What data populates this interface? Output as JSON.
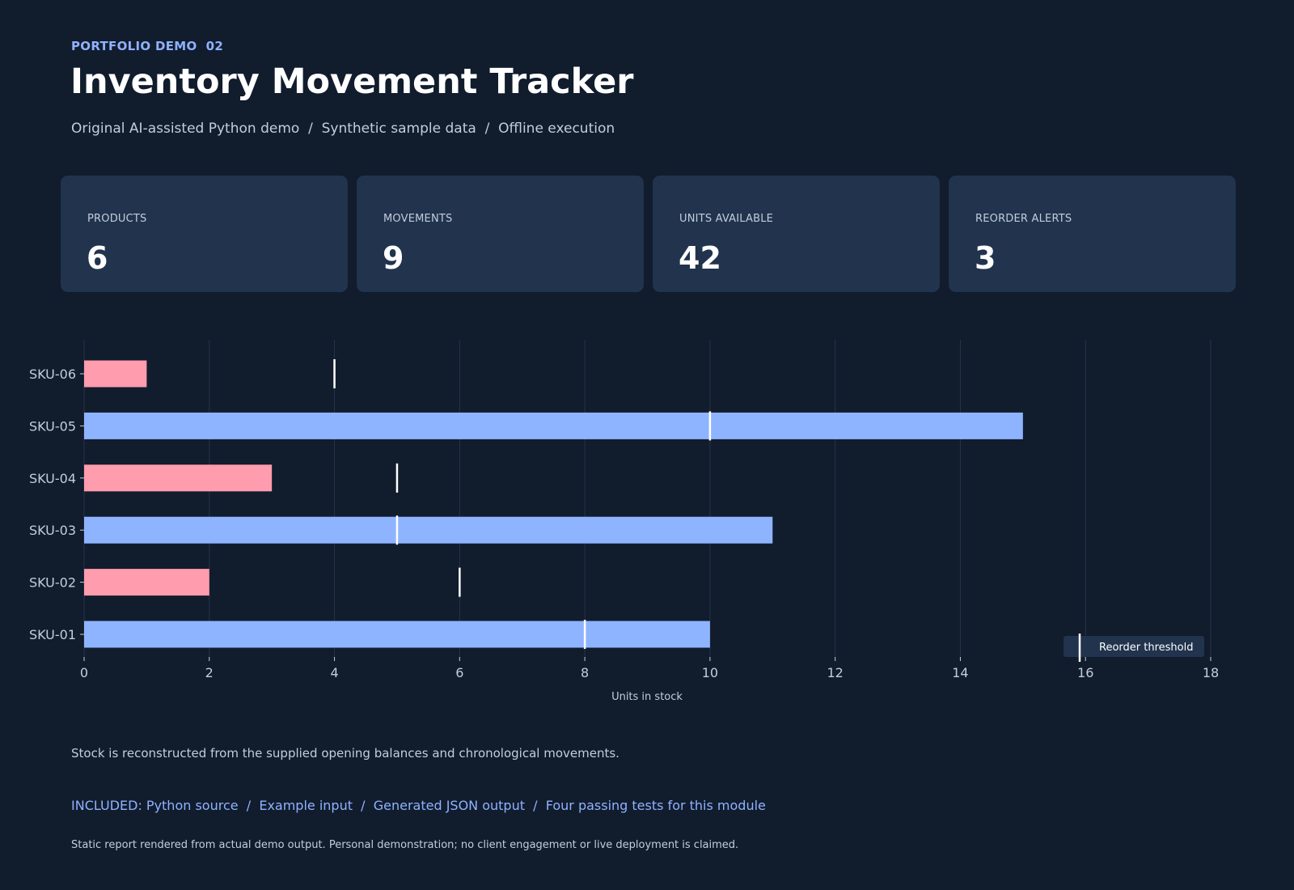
{
  "header": {
    "eyebrow": "PORTFOLIO DEMO  02",
    "title": "Inventory Movement Tracker",
    "subtitle": "Original AI-assisted Python demo  /  Synthetic sample data  /  Offline execution"
  },
  "cards": [
    {
      "label": "PRODUCTS",
      "value": "6"
    },
    {
      "label": "MOVEMENTS",
      "value": "9"
    },
    {
      "label": "UNITS AVAILABLE",
      "value": "42"
    },
    {
      "label": "REORDER ALERTS",
      "value": "3"
    }
  ],
  "chart_data": {
    "type": "bar",
    "orientation": "horizontal",
    "categories": [
      "SKU-06",
      "SKU-05",
      "SKU-04",
      "SKU-03",
      "SKU-02",
      "SKU-01"
    ],
    "series": [
      {
        "values": [
          1,
          15,
          3,
          11,
          2,
          10
        ]
      },
      {
        "name": "Reorder threshold",
        "values": [
          4,
          10,
          5,
          5,
          6,
          8
        ]
      }
    ],
    "below_threshold": [
      true,
      false,
      true,
      false,
      true,
      false
    ],
    "xlabel": "Units in stock",
    "ylabel": "",
    "xlim": [
      0,
      18
    ],
    "xticks": [
      0,
      2,
      4,
      6,
      8,
      10,
      12,
      14,
      16,
      18
    ],
    "grid": "vertical",
    "legend": "bottom-right",
    "colors": {
      "ok": "#8fb4ff",
      "alert": "#ff9cad",
      "threshold": "#ffffff",
      "grid": "#26344a",
      "legend_bg": "#21334d"
    }
  },
  "footer": {
    "note": "Stock is reconstructed from the supplied opening balances and chronological movements.",
    "included": "INCLUDED: Python source  /  Example input  /  Generated JSON output  /  Four passing tests for this module",
    "disclaimer": "Static report rendered from actual demo output. Personal demonstration; no client engagement or live deployment is claimed."
  }
}
